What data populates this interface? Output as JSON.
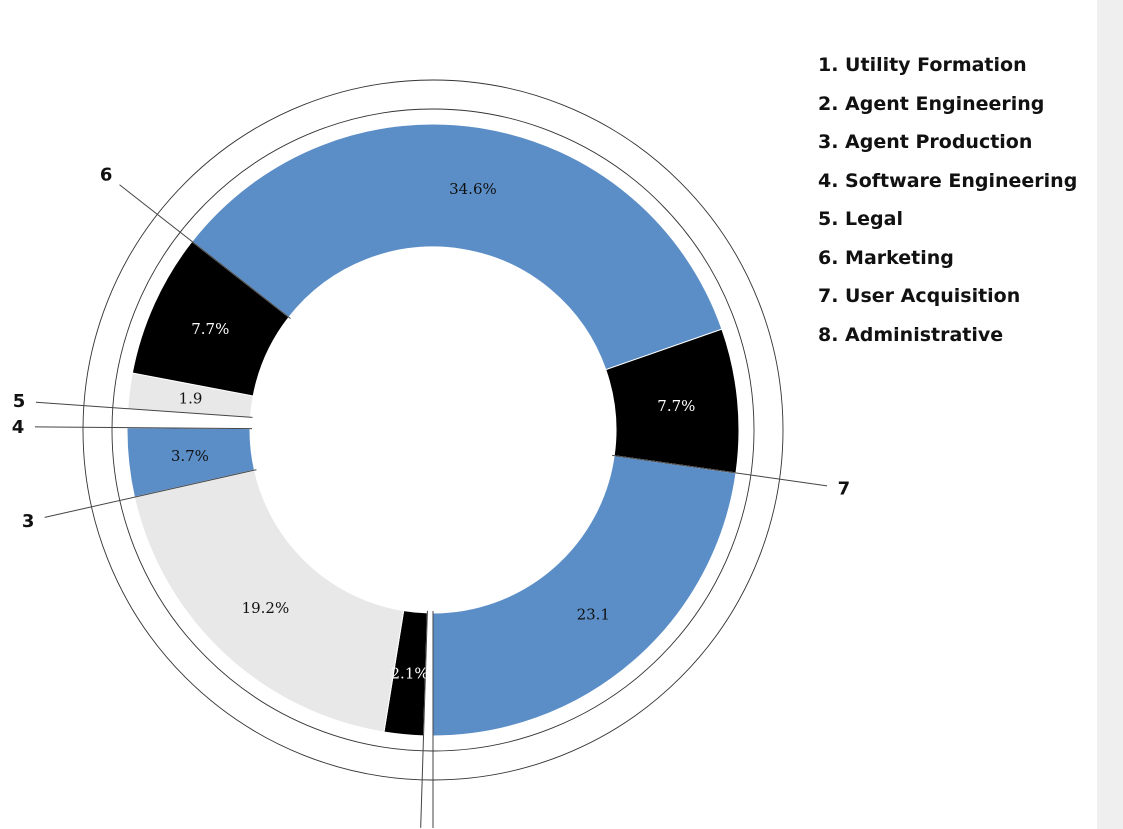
{
  "chart_data": {
    "type": "pie",
    "variant": "donut",
    "slices": [
      {
        "id": "1",
        "value": 0.5
      },
      {
        "id": "2",
        "value": 2.1,
        "label": "2.1%",
        "color": "#000000"
      },
      {
        "id": "3",
        "value": 19.2,
        "label": "19.2%",
        "color": "#e8e8e8"
      },
      {
        "id": "",
        "value": 3.7,
        "label": "3.7%",
        "color": "#5b8ec7"
      },
      {
        "id": "4",
        "value": 1.0
      },
      {
        "id": "5",
        "value": 1.9,
        "label": "1.9",
        "color": "#e8e8e8"
      },
      {
        "id": "6",
        "value": 7.7,
        "label": "7.7%",
        "color": "#000000"
      },
      {
        "id": "",
        "value": 34.6,
        "label": "34.6%",
        "color": "#5b8ec7"
      },
      {
        "id": "7",
        "value": 7.7,
        "label": "7.7%",
        "color": "#000000"
      },
      {
        "id": "8",
        "value": 23.1,
        "label": "23.1",
        "color": "#5b8ec7"
      }
    ],
    "legend_position": "right",
    "legend": [
      "1. Utility Formation",
      "2. Agent Engineering",
      "3. Agent Production",
      "4. Software Engineering",
      "5. Legal",
      "6. Marketing",
      "7. User Acquisition",
      "8. Administrative"
    ]
  }
}
